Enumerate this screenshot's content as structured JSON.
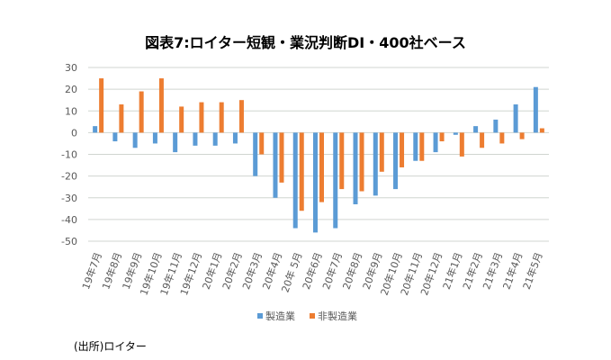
{
  "chart_data": {
    "type": "bar",
    "title": "図表7:ロイター短観・業況判断DI・400社ベース",
    "categories": [
      "19年7月",
      "19年8月",
      "19年9月",
      "19年10月",
      "19年11月",
      "19年12月",
      "20年1月",
      "20年2月",
      "20年3月",
      "20年4月",
      "20年 5月",
      "20年6月",
      "20年7月",
      "20年8月",
      "20年9月",
      "20年10月",
      "20年11月",
      "20年12月",
      "21年1月",
      "21年2月",
      "21年3月",
      "21年4月",
      "21年5月"
    ],
    "series": [
      {
        "name": "製造業",
        "color": "#5B9BD5",
        "values": [
          3,
          -4,
          -7,
          -5,
          -9,
          -6,
          -6,
          -5,
          -20,
          -30,
          -44,
          -46,
          -44,
          -33,
          -29,
          -26,
          -13,
          -9,
          -1,
          3,
          6,
          13,
          21
        ]
      },
      {
        "name": "非製造業",
        "color": "#ED7D31",
        "values": [
          25,
          13,
          19,
          25,
          12,
          14,
          14,
          15,
          -10,
          -23,
          -36,
          -32,
          -26,
          -27,
          -18,
          -16,
          -13,
          -4,
          -11,
          -7,
          -5,
          -3,
          2
        ]
      }
    ],
    "ylim": [
      -50,
      30
    ],
    "yticks": [
      30,
      20,
      10,
      0,
      -10,
      -20,
      -30,
      -40,
      -50
    ],
    "grid": true,
    "legend": "bottom"
  },
  "source": "(出所)ロイター"
}
